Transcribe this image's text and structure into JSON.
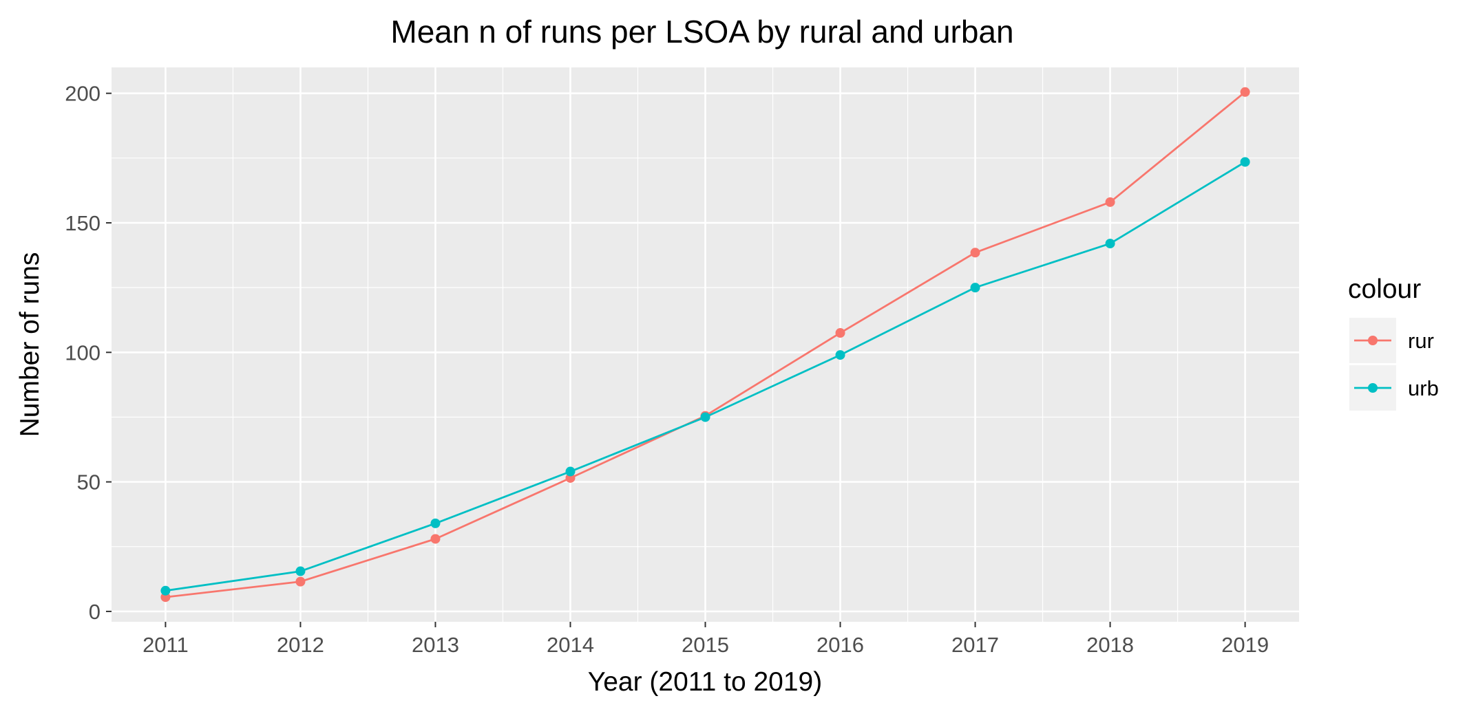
{
  "chart_data": {
    "type": "line",
    "title": "Mean n of runs per LSOA by rural and urban",
    "xlabel": "Year (2011 to 2019)",
    "ylabel": "Number of runs",
    "x": [
      2011,
      2012,
      2013,
      2014,
      2015,
      2016,
      2017,
      2018,
      2019
    ],
    "x_tick_labels": [
      "2011",
      "2012",
      "2013",
      "2014",
      "2015",
      "2016",
      "2017",
      "2018",
      "2019"
    ],
    "y_ticks": [
      0,
      50,
      100,
      150,
      200
    ],
    "y_tick_labels": [
      "0",
      "50",
      "100",
      "150",
      "200"
    ],
    "xlim": [
      2010.6,
      2019.4
    ],
    "ylim": [
      -4,
      210
    ],
    "grid": true,
    "legend": {
      "title": "colour",
      "placement": "right"
    },
    "series": [
      {
        "name": "rur",
        "color": "#F8766D",
        "values": [
          5.5,
          11.5,
          28.0,
          51.5,
          75.5,
          107.5,
          138.5,
          158.0,
          200.5
        ]
      },
      {
        "name": "urb",
        "color": "#00BFC4",
        "values": [
          8.0,
          15.5,
          34.0,
          54.0,
          75.0,
          99.0,
          125.0,
          142.0,
          173.5
        ]
      }
    ]
  }
}
